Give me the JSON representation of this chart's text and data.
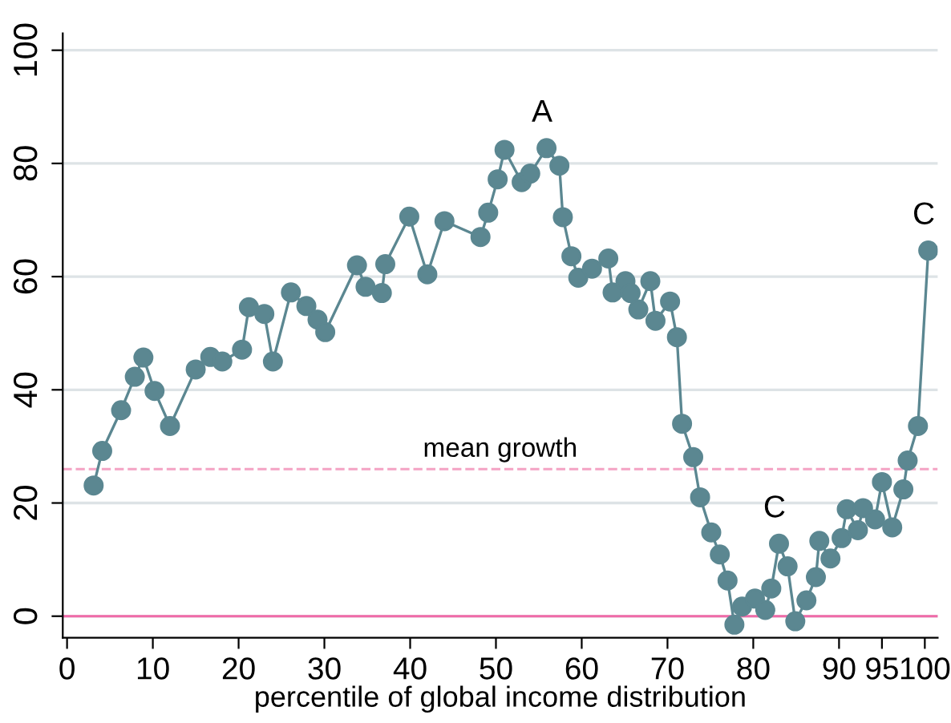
{
  "chart_data": {
    "type": "line",
    "xlabel": "percentile of global income distribution",
    "x": [
      3.1,
      4.1,
      6.3,
      7.9,
      8.9,
      10.2,
      12.0,
      15.0,
      16.7,
      18.1,
      20.4,
      21.2,
      23.0,
      24.0,
      26.1,
      27.9,
      29.2,
      30.1,
      33.8,
      34.8,
      36.7,
      37.1,
      39.9,
      42.0,
      44.0,
      48.2,
      49.1,
      50.2,
      51.0,
      53.0,
      54.0,
      55.9,
      57.4,
      57.8,
      58.8,
      59.6,
      61.2,
      63.1,
      63.6,
      65.1,
      65.7,
      66.6,
      68.0,
      68.6,
      70.3,
      71.1,
      71.7,
      73.0,
      73.8,
      75.1,
      76.1,
      77.0,
      77.8,
      78.7,
      80.2,
      81.4,
      82.1,
      83.0,
      84.0,
      84.9,
      86.2,
      87.3,
      87.7,
      89.0,
      90.3,
      90.9,
      92.2,
      92.8,
      94.2,
      95.0,
      96.2,
      97.5,
      98.0,
      99.2,
      100.4
    ],
    "series": [
      {
        "color": "#5b8791",
        "values": [
          23.1,
          29.2,
          36.4,
          42.3,
          45.7,
          39.8,
          33.6,
          43.6,
          45.8,
          45.0,
          47.1,
          54.6,
          53.4,
          45.0,
          57.2,
          54.8,
          52.4,
          50.2,
          62.0,
          58.2,
          57.1,
          62.2,
          70.6,
          60.4,
          69.8,
          67.0,
          71.3,
          77.2,
          82.4,
          76.7,
          78.2,
          82.7,
          79.6,
          70.5,
          63.6,
          59.8,
          61.4,
          63.2,
          57.2,
          59.2,
          57.1,
          54.2,
          59.2,
          52.2,
          55.6,
          49.3,
          34.0,
          28.1,
          21.0,
          14.8,
          10.9,
          6.3,
          -1.5,
          1.7,
          3.1,
          1.1,
          4.9,
          12.8,
          8.8,
          -0.9,
          2.8,
          6.9,
          13.3,
          10.2,
          13.8,
          18.9,
          15.2,
          19.1,
          17.1,
          23.7,
          15.7,
          22.4,
          27.5,
          33.6,
          64.6
        ]
      }
    ],
    "marker": "circle",
    "line_style": "solid",
    "xlim": [
      -0.5,
      101.5
    ],
    "xticks": [
      0,
      10,
      20,
      30,
      40,
      50,
      60,
      70,
      80,
      90,
      95,
      100
    ],
    "ylim": [
      -3.8,
      103
    ],
    "yticks": [
      0,
      20,
      40,
      60,
      80,
      100
    ],
    "grid": "y",
    "ref_lines": [
      {
        "axis": "y",
        "value": 26,
        "label": "mean growth",
        "color": "#f4a3c4",
        "line_style": "dashed"
      },
      {
        "axis": "y",
        "value": 0,
        "color": "#f06aa8",
        "line_style": "solid"
      }
    ],
    "annotations": [
      {
        "text": "A",
        "x": 55.9,
        "y": 82.7
      },
      {
        "text": "C",
        "x": 83.0,
        "y": 12.8
      },
      {
        "text": "C",
        "x": 100.4,
        "y": 64.6
      }
    ]
  }
}
